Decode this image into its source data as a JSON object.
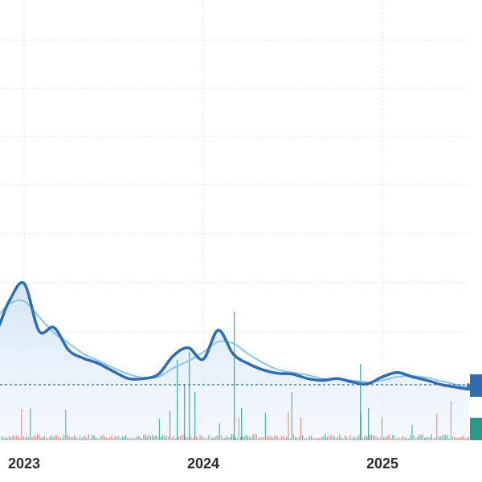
{
  "chart_data": {
    "type": "line",
    "title": "",
    "xlabel": "",
    "ylabel": "",
    "x_tick_labels": [
      "2023",
      "2024",
      "2025"
    ],
    "x_range": [
      "2022-09",
      "2025-12"
    ],
    "y_range": [
      0,
      500
    ],
    "grid": true,
    "legend": "none",
    "reference_line": {
      "value": 63,
      "style": "dashed"
    },
    "series": [
      {
        "style": "thick-line-with-area",
        "color": "#2f6db3",
        "x": [
          "2022-09",
          "2022-10",
          "2022-11",
          "2022-12",
          "2023-01",
          "2023-02",
          "2023-03",
          "2023-04",
          "2023-05",
          "2023-06",
          "2023-07",
          "2023-08",
          "2023-09",
          "2023-10",
          "2023-11",
          "2023-12",
          "2024-01",
          "2024-02",
          "2024-03",
          "2024-04",
          "2024-05",
          "2024-06",
          "2024-07",
          "2024-08",
          "2024-09",
          "2024-10",
          "2024-11",
          "2024-12",
          "2025-01",
          "2025-02",
          "2025-03",
          "2025-04",
          "2025-05",
          "2025-06",
          "2025-07",
          "2025-08",
          "2025-09",
          "2025-10",
          "2025-11",
          "2025-12"
        ],
        "values": [
          185,
          140,
          122,
          158,
          178,
          124,
          128,
          102,
          93,
          87,
          78,
          70,
          70,
          75,
          96,
          105,
          92,
          125,
          98,
          87,
          80,
          76,
          75,
          70,
          68,
          70,
          66,
          64,
          72,
          77,
          72,
          68,
          63,
          60,
          58,
          60,
          62,
          63,
          63,
          62
        ]
      },
      {
        "style": "thin-line",
        "color": "#89c4ec",
        "x": [
          "2022-09",
          "2022-10",
          "2022-11",
          "2022-12",
          "2023-01",
          "2023-02",
          "2023-03",
          "2023-04",
          "2023-05",
          "2023-06",
          "2023-07",
          "2023-08",
          "2023-09",
          "2023-10",
          "2023-11",
          "2023-12",
          "2024-01",
          "2024-02",
          "2024-03",
          "2024-04",
          "2024-05",
          "2024-06",
          "2024-07",
          "2024-08",
          "2024-09",
          "2024-10",
          "2024-11",
          "2024-12",
          "2025-01",
          "2025-02",
          "2025-03",
          "2025-04",
          "2025-05",
          "2025-06",
          "2025-07",
          "2025-08",
          "2025-09",
          "2025-10",
          "2025-11",
          "2025-12"
        ],
        "values": [
          190,
          155,
          140,
          155,
          158,
          140,
          122,
          110,
          98,
          90,
          82,
          75,
          71,
          72,
          82,
          90,
          100,
          112,
          110,
          98,
          88,
          80,
          77,
          74,
          70,
          69,
          68,
          66,
          68,
          72,
          73,
          71,
          67,
          63,
          60,
          60,
          61,
          62,
          62,
          62
        ]
      }
    ],
    "volume": {
      "type": "bar",
      "colors": [
        "#e57373",
        "#26a69a"
      ]
    },
    "price_markers": [
      {
        "color": "#2f6db3"
      },
      {
        "color": "#26998a"
      }
    ],
    "colors": {
      "line": "#2f6db3",
      "average": "#89c4ec",
      "area": "#dcebf7",
      "grid": "#d9dde3",
      "reference": "#2f5d8a",
      "volume_up": "#26a69a",
      "volume_down": "#e57373"
    }
  }
}
